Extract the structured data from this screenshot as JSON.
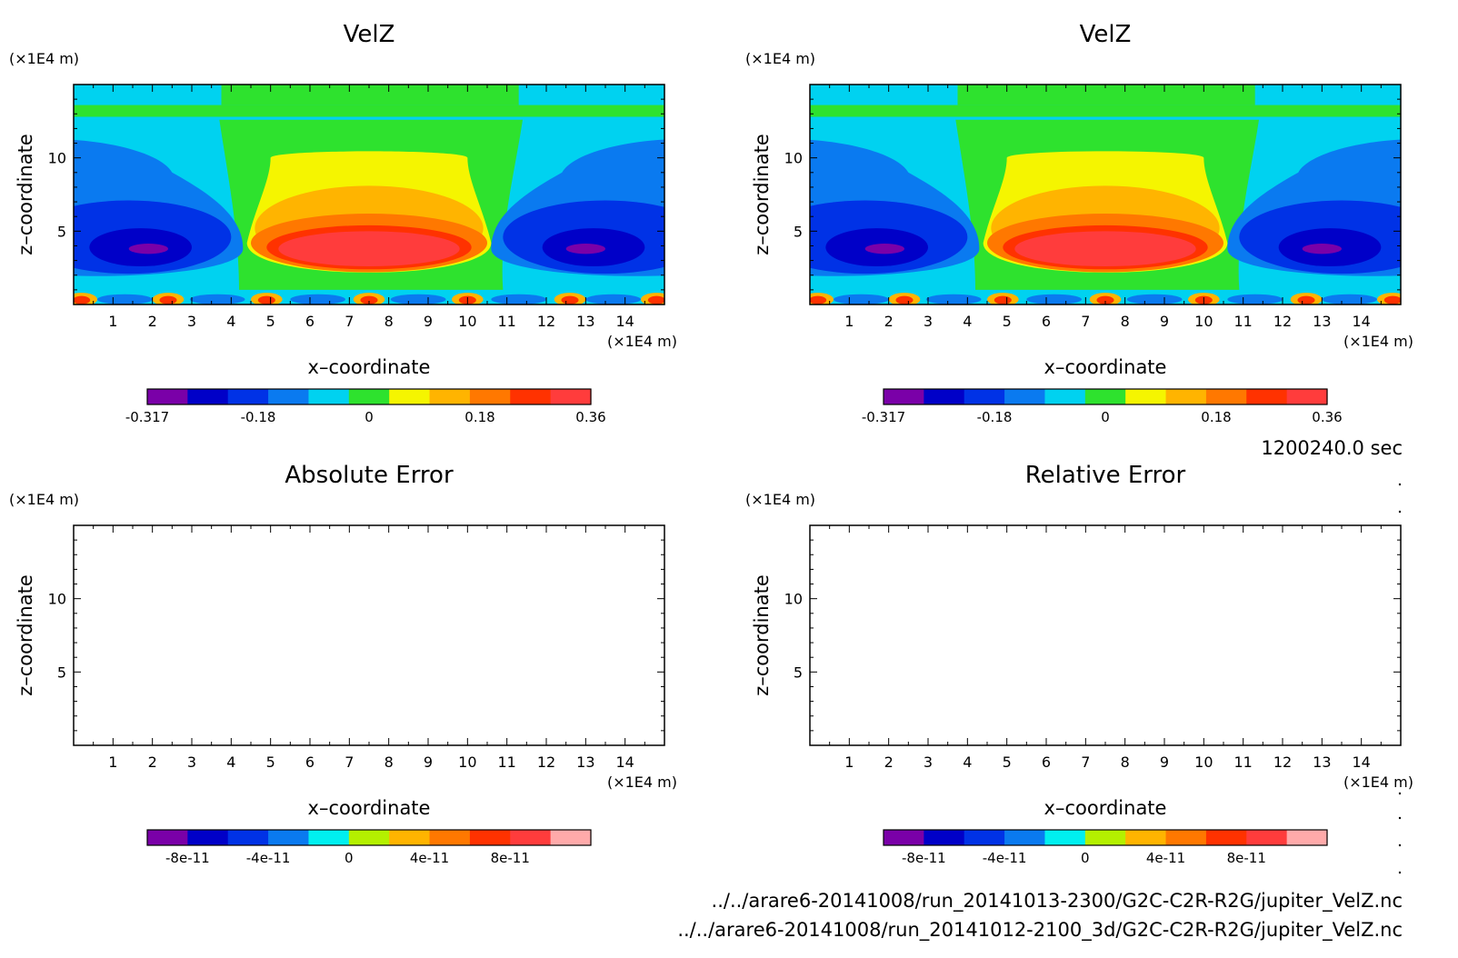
{
  "panels": [
    {
      "title": "VelZ",
      "kind": "field",
      "x_unit": "(×1E4 m)",
      "z_unit": "(×1E4 m)",
      "xlabel": "x–coordinate",
      "ylabel": "z–coordinate",
      "x_ticks": [
        "1",
        "2",
        "3",
        "4",
        "5",
        "6",
        "7",
        "8",
        "9",
        "10",
        "11",
        "12",
        "13",
        "14"
      ],
      "z_ticks": [
        "5",
        "10"
      ],
      "colorbar": {
        "colors": [
          "#7a00a8",
          "#0000c8",
          "#0032e6",
          "#0a7af0",
          "#00d2f0",
          "#2ee22e",
          "#f5f500",
          "#ffb400",
          "#ff7800",
          "#ff3200",
          "#ff3c3c"
        ],
        "labels": [
          "-0.317",
          "-0.18",
          "0",
          "0.18",
          "0.36"
        ]
      }
    },
    {
      "title": "VelZ",
      "kind": "field",
      "x_unit": "(×1E4 m)",
      "z_unit": "(×1E4 m)",
      "xlabel": "x–coordinate",
      "ylabel": "z–coordinate",
      "x_ticks": [
        "1",
        "2",
        "3",
        "4",
        "5",
        "6",
        "7",
        "8",
        "9",
        "10",
        "11",
        "12",
        "13",
        "14"
      ],
      "z_ticks": [
        "5",
        "10"
      ],
      "colorbar": {
        "colors": [
          "#7a00a8",
          "#0000c8",
          "#0032e6",
          "#0a7af0",
          "#00d2f0",
          "#2ee22e",
          "#f5f500",
          "#ffb400",
          "#ff7800",
          "#ff3200",
          "#ff3c3c"
        ],
        "labels": [
          "-0.317",
          "-0.18",
          "0",
          "0.18",
          "0.36"
        ]
      }
    },
    {
      "title": "Absolute Error",
      "kind": "empty",
      "x_unit": "(×1E4 m)",
      "z_unit": "(×1E4 m)",
      "xlabel": "x–coordinate",
      "ylabel": "z–coordinate",
      "x_ticks": [
        "1",
        "2",
        "3",
        "4",
        "5",
        "6",
        "7",
        "8",
        "9",
        "10",
        "11",
        "12",
        "13",
        "14"
      ],
      "z_ticks": [
        "5",
        "10"
      ],
      "colorbar": {
        "colors": [
          "#7a00a8",
          "#0000c8",
          "#0032e6",
          "#0a7af0",
          "#00f0f0",
          "#b4f000",
          "#ffb400",
          "#ff7800",
          "#ff3200",
          "#ff3c3c",
          "#ffaaaa"
        ],
        "labels": [
          "-8e-11",
          "-4e-11",
          "0",
          "4e-11",
          "8e-11"
        ]
      }
    },
    {
      "title": "Relative Error",
      "kind": "empty",
      "x_unit": "(×1E4 m)",
      "z_unit": "(×1E4 m)",
      "xlabel": "x–coordinate",
      "ylabel": "z–coordinate",
      "x_ticks": [
        "1",
        "2",
        "3",
        "4",
        "5",
        "6",
        "7",
        "8",
        "9",
        "10",
        "11",
        "12",
        "13",
        "14"
      ],
      "z_ticks": [
        "5",
        "10"
      ],
      "colorbar": {
        "colors": [
          "#7a00a8",
          "#0000c8",
          "#0032e6",
          "#0a7af0",
          "#00f0f0",
          "#b4f000",
          "#ffb400",
          "#ff7800",
          "#ff3200",
          "#ff3c3c",
          "#ffaaaa"
        ],
        "labels": [
          "-8e-11",
          "-4e-11",
          "0",
          "4e-11",
          "8e-11"
        ]
      }
    }
  ],
  "time_label": "1200240.0 sec",
  "file_paths": [
    "../../arare6-20141008/run_20141013-2300/G2C-C2R-R2G/jupiter_VelZ.nc",
    "../../arare6-20141008/run_20141012-2100_3d/G2C-C2R-R2G/jupiter_VelZ.nc"
  ],
  "chart_data": [
    {
      "type": "heatmap",
      "title": "VelZ",
      "xlabel": "x–coordinate",
      "ylabel": "z–coordinate",
      "x_unit": "(×1E4 m)",
      "z_unit": "(×1E4 m)",
      "xlim": [
        0,
        15
      ],
      "ylim": [
        0,
        15
      ],
      "colorbar_range": [
        -0.317,
        0.36
      ],
      "colorbar_labels": [
        "-0.317",
        "-0.18",
        "0",
        "0.18",
        "0.36"
      ],
      "features": [
        {
          "sign": "negative",
          "x_center": 1.9,
          "z_center": 3.8,
          "peak": -0.317
        },
        {
          "sign": "positive",
          "x_center": 7.5,
          "z_center": 3.8,
          "peak": 0.36
        },
        {
          "sign": "negative",
          "x_center": 13.0,
          "z_center": 3.8,
          "peak": -0.317
        }
      ]
    },
    {
      "type": "heatmap",
      "title": "VelZ",
      "xlabel": "x–coordinate",
      "ylabel": "z–coordinate",
      "x_unit": "(×1E4 m)",
      "z_unit": "(×1E4 m)",
      "xlim": [
        0,
        15
      ],
      "ylim": [
        0,
        15
      ],
      "colorbar_range": [
        -0.317,
        0.36
      ],
      "colorbar_labels": [
        "-0.317",
        "-0.18",
        "0",
        "0.18",
        "0.36"
      ],
      "features": [
        {
          "sign": "negative",
          "x_center": 1.9,
          "z_center": 3.8,
          "peak": -0.317
        },
        {
          "sign": "positive",
          "x_center": 7.5,
          "z_center": 3.8,
          "peak": 0.36
        },
        {
          "sign": "negative",
          "x_center": 13.0,
          "z_center": 3.8,
          "peak": -0.317
        }
      ]
    },
    {
      "type": "heatmap",
      "title": "Absolute Error",
      "xlabel": "x–coordinate",
      "ylabel": "z–coordinate",
      "xlim": [
        0,
        15
      ],
      "ylim": [
        0,
        15
      ],
      "colorbar_labels": [
        "-8e-11",
        "-4e-11",
        "0",
        "4e-11",
        "8e-11"
      ],
      "values": []
    },
    {
      "type": "heatmap",
      "title": "Relative Error",
      "xlabel": "x–coordinate",
      "ylabel": "z–coordinate",
      "xlim": [
        0,
        15
      ],
      "ylim": [
        0,
        15
      ],
      "colorbar_labels": [
        "-8e-11",
        "-4e-11",
        "0",
        "4e-11",
        "8e-11"
      ],
      "values": []
    }
  ]
}
